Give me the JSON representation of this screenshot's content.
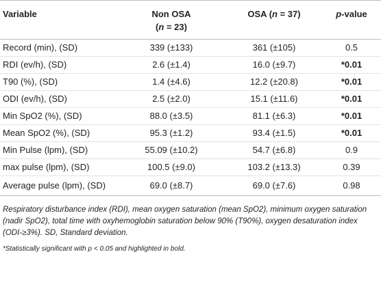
{
  "table": {
    "header": [
      [
        "Variable"
      ],
      [
        "Non OSA",
        "(",
        "n",
        " = 23)"
      ],
      [
        "OSA (",
        "n",
        " = 37)"
      ],
      [
        "p",
        "-value"
      ]
    ],
    "rows": [
      [
        "Record (min), (SD)",
        "339 (±133)",
        "361 (±105)",
        "0.5"
      ],
      [
        "RDI (ev/h), (SD)",
        "2.6 (±1.4)",
        "16.0 (±9.7)",
        "*0.01"
      ],
      [
        "T90 (%), (SD)",
        "1.4 (±4.6)",
        "12.2 (±20.8)",
        "*0.01"
      ],
      [
        "ODI (ev/h), (SD)",
        "2.5 (±2.0)",
        "15.1 (±11.6)",
        "*0.01"
      ],
      [
        "Min SpO2 (%), (SD)",
        "88.0 (±3.5)",
        "81.1 (±6.3)",
        "*0.01"
      ],
      [
        "Mean SpO2 (%), (SD)",
        "95.3 (±1.2)",
        "93.4 (±1.5)",
        "*0.01"
      ],
      [
        "Min Pulse (lpm), (SD)",
        "55.09 (±10.2)",
        "54.7 (±6.8)",
        "0.9"
      ],
      [
        "max pulse (lpm), (SD)",
        "100.5 (±9.0)",
        "103.2 (±13.3)",
        "0.39"
      ],
      [
        "Average pulse (lpm), (SD)",
        "69.0 (±8.7)",
        "69.0 (±7.6)",
        "0.98"
      ]
    ]
  },
  "footnotes": [
    "Respiratory disturbance index (RDI), mean oxygen saturation (mean SpO2), minimum oxygen saturation (nadir SpO2), total time with oxyhemoglobin saturation below 90% (T90%), oxygen desaturation index (ODI-≥3%). SD, Standard deviation.",
    "*Statistically significant with p < 0.05 and highlighted in bold."
  ]
}
